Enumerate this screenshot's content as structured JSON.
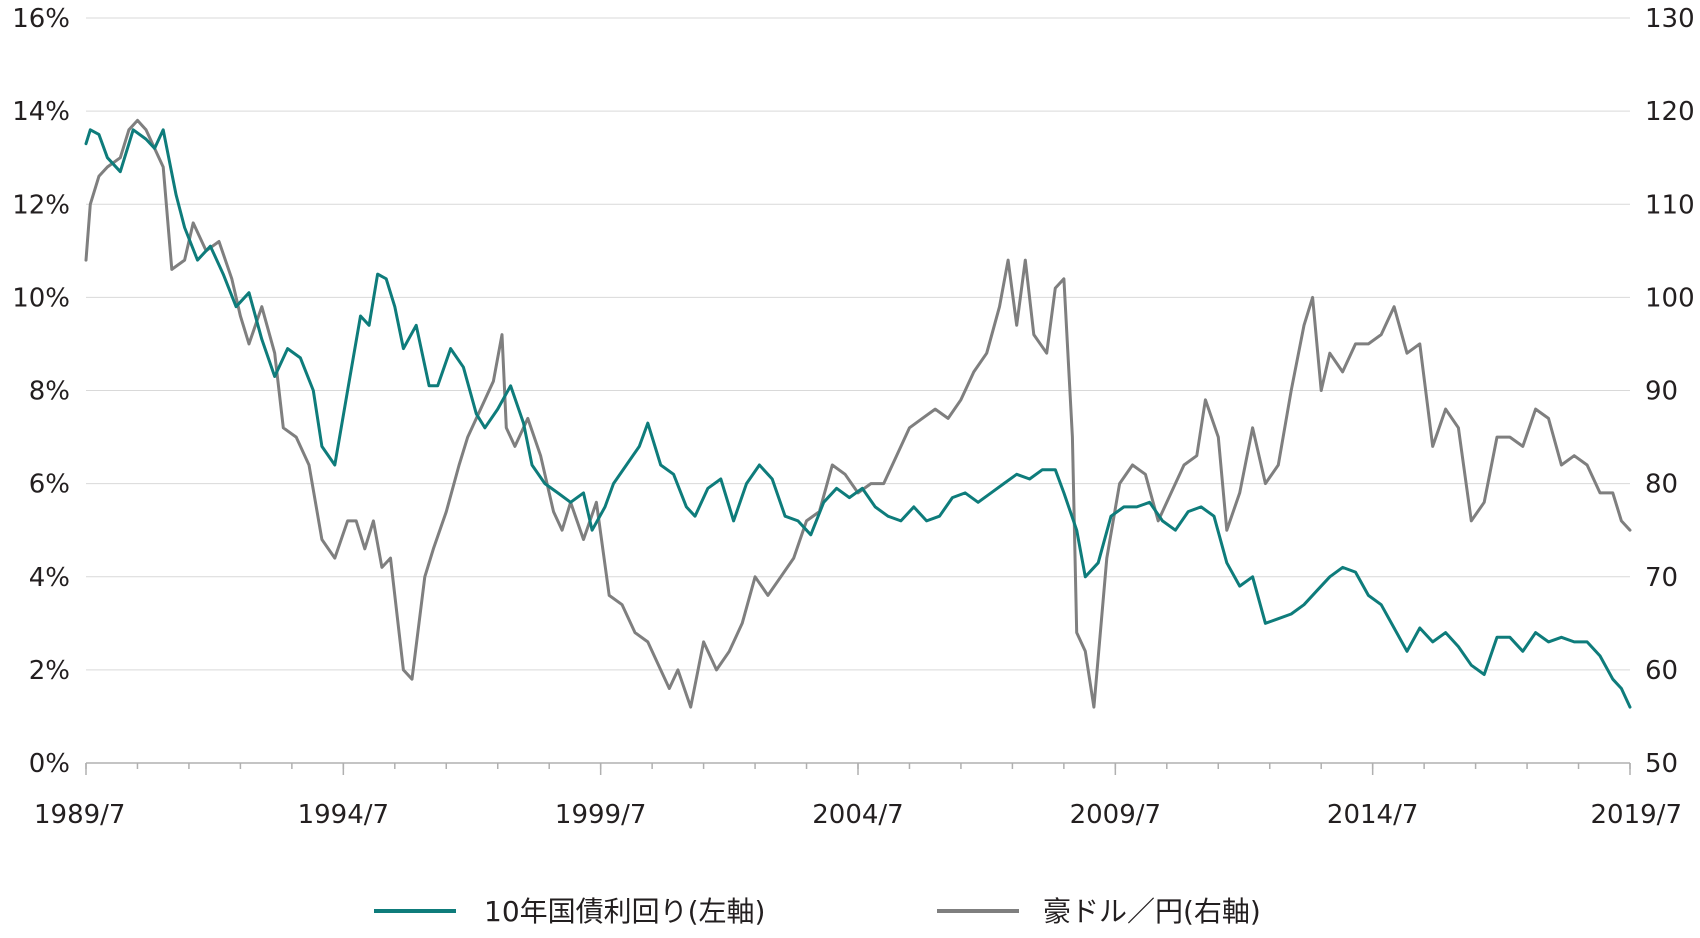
{
  "chart_data": {
    "type": "line",
    "x_range": [
      "1989/7",
      "2019/7"
    ],
    "x_ticks": [
      "1989/7",
      "1994/7",
      "1999/7",
      "2004/7",
      "2009/7",
      "2014/7",
      "2019/7"
    ],
    "y_left": {
      "ylim": [
        0,
        16
      ],
      "ticks": [
        "0%",
        "2%",
        "4%",
        "6%",
        "8%",
        "10%",
        "12%",
        "14%",
        "16%"
      ]
    },
    "y_right": {
      "ylim": [
        50,
        130
      ],
      "ticks": [
        "50",
        "60",
        "70",
        "80",
        "90",
        "100",
        "110",
        "120",
        "130"
      ]
    },
    "grid": true,
    "legend_position": "bottom",
    "series": [
      {
        "name": "10年国債利回り(左軸)",
        "axis": "left",
        "color": "#0e7c7b",
        "points": [
          [
            "1989/7",
            13.3
          ],
          [
            "1989/8",
            13.6
          ],
          [
            "1989/10",
            13.5
          ],
          [
            "1989/12",
            13.0
          ],
          [
            "1990/3",
            12.7
          ],
          [
            "1990/6",
            13.6
          ],
          [
            "1990/9",
            13.4
          ],
          [
            "1990/11",
            13.2
          ],
          [
            "1991/1",
            13.6
          ],
          [
            "1991/4",
            12.2
          ],
          [
            "1991/6",
            11.5
          ],
          [
            "1991/9",
            10.8
          ],
          [
            "1991/12",
            11.1
          ],
          [
            "1992/3",
            10.5
          ],
          [
            "1992/6",
            9.8
          ],
          [
            "1992/9",
            10.1
          ],
          [
            "1992/12",
            9.1
          ],
          [
            "1993/3",
            8.3
          ],
          [
            "1993/6",
            8.9
          ],
          [
            "1993/9",
            8.7
          ],
          [
            "1993/12",
            8.0
          ],
          [
            "1994/2",
            6.8
          ],
          [
            "1994/5",
            6.4
          ],
          [
            "1994/8",
            8.0
          ],
          [
            "1994/11",
            9.6
          ],
          [
            "1995/1",
            9.4
          ],
          [
            "1995/3",
            10.5
          ],
          [
            "1995/5",
            10.4
          ],
          [
            "1995/7",
            9.8
          ],
          [
            "1995/9",
            8.9
          ],
          [
            "1995/12",
            9.4
          ],
          [
            "1996/3",
            8.1
          ],
          [
            "1996/5",
            8.1
          ],
          [
            "1996/8",
            8.9
          ],
          [
            "1996/11",
            8.5
          ],
          [
            "1997/2",
            7.5
          ],
          [
            "1997/4",
            7.2
          ],
          [
            "1997/7",
            7.6
          ],
          [
            "1997/10",
            8.1
          ],
          [
            "1998/1",
            7.3
          ],
          [
            "1998/3",
            6.4
          ],
          [
            "1998/6",
            6.0
          ],
          [
            "1998/9",
            5.8
          ],
          [
            "1998/12",
            5.6
          ],
          [
            "1999/3",
            5.8
          ],
          [
            "1999/5",
            5.0
          ],
          [
            "1999/8",
            5.5
          ],
          [
            "1999/10",
            6.0
          ],
          [
            "2000/1",
            6.4
          ],
          [
            "2000/4",
            6.8
          ],
          [
            "2000/6",
            7.3
          ],
          [
            "2000/9",
            6.4
          ],
          [
            "2000/12",
            6.2
          ],
          [
            "2001/3",
            5.5
          ],
          [
            "2001/5",
            5.3
          ],
          [
            "2001/8",
            5.9
          ],
          [
            "2001/11",
            6.1
          ],
          [
            "2002/2",
            5.2
          ],
          [
            "2002/5",
            6.0
          ],
          [
            "2002/8",
            6.4
          ],
          [
            "2002/11",
            6.1
          ],
          [
            "2003/2",
            5.3
          ],
          [
            "2003/5",
            5.2
          ],
          [
            "2003/8",
            4.9
          ],
          [
            "2003/11",
            5.6
          ],
          [
            "2004/2",
            5.9
          ],
          [
            "2004/5",
            5.7
          ],
          [
            "2004/8",
            5.9
          ],
          [
            "2004/11",
            5.5
          ],
          [
            "2005/2",
            5.3
          ],
          [
            "2005/5",
            5.2
          ],
          [
            "2005/8",
            5.5
          ],
          [
            "2005/11",
            5.2
          ],
          [
            "2006/2",
            5.3
          ],
          [
            "2006/5",
            5.7
          ],
          [
            "2006/8",
            5.8
          ],
          [
            "2006/11",
            5.6
          ],
          [
            "2007/2",
            5.8
          ],
          [
            "2007/5",
            6.0
          ],
          [
            "2007/8",
            6.2
          ],
          [
            "2007/11",
            6.1
          ],
          [
            "2008/2",
            6.3
          ],
          [
            "2008/5",
            6.3
          ],
          [
            "2008/7",
            5.8
          ],
          [
            "2008/10",
            5.0
          ],
          [
            "2008/12",
            4.0
          ],
          [
            "2009/3",
            4.3
          ],
          [
            "2009/6",
            5.3
          ],
          [
            "2009/9",
            5.5
          ],
          [
            "2009/12",
            5.5
          ],
          [
            "2010/3",
            5.6
          ],
          [
            "2010/6",
            5.2
          ],
          [
            "2010/9",
            5.0
          ],
          [
            "2010/12",
            5.4
          ],
          [
            "2011/3",
            5.5
          ],
          [
            "2011/6",
            5.3
          ],
          [
            "2011/9",
            4.3
          ],
          [
            "2011/12",
            3.8
          ],
          [
            "2012/3",
            4.0
          ],
          [
            "2012/6",
            3.0
          ],
          [
            "2012/9",
            3.1
          ],
          [
            "2012/12",
            3.2
          ],
          [
            "2013/3",
            3.4
          ],
          [
            "2013/6",
            3.7
          ],
          [
            "2013/9",
            4.0
          ],
          [
            "2013/12",
            4.2
          ],
          [
            "2014/3",
            4.1
          ],
          [
            "2014/6",
            3.6
          ],
          [
            "2014/9",
            3.4
          ],
          [
            "2014/12",
            2.9
          ],
          [
            "2015/3",
            2.4
          ],
          [
            "2015/6",
            2.9
          ],
          [
            "2015/9",
            2.6
          ],
          [
            "2015/12",
            2.8
          ],
          [
            "2016/3",
            2.5
          ],
          [
            "2016/6",
            2.1
          ],
          [
            "2016/9",
            1.9
          ],
          [
            "2016/12",
            2.7
          ],
          [
            "2017/3",
            2.7
          ],
          [
            "2017/6",
            2.4
          ],
          [
            "2017/9",
            2.8
          ],
          [
            "2017/12",
            2.6
          ],
          [
            "2018/3",
            2.7
          ],
          [
            "2018/6",
            2.6
          ],
          [
            "2018/9",
            2.6
          ],
          [
            "2018/12",
            2.3
          ],
          [
            "2019/3",
            1.8
          ],
          [
            "2019/5",
            1.6
          ],
          [
            "2019/7",
            1.2
          ]
        ]
      },
      {
        "name": "豪ドル／円(右軸)",
        "axis": "right",
        "color": "#7f7f7f",
        "points": [
          [
            "1989/7",
            104
          ],
          [
            "1989/8",
            110
          ],
          [
            "1989/10",
            113
          ],
          [
            "1989/12",
            114
          ],
          [
            "1990/3",
            115
          ],
          [
            "1990/5",
            118
          ],
          [
            "1990/7",
            119
          ],
          [
            "1990/9",
            118
          ],
          [
            "1990/11",
            116
          ],
          [
            "1991/1",
            114
          ],
          [
            "1991/3",
            103
          ],
          [
            "1991/6",
            104
          ],
          [
            "1991/8",
            108
          ],
          [
            "1991/11",
            105
          ],
          [
            "1992/2",
            106
          ],
          [
            "1992/5",
            102
          ],
          [
            "1992/7",
            98
          ],
          [
            "1992/9",
            95
          ],
          [
            "1992/12",
            99
          ],
          [
            "1993/3",
            94
          ],
          [
            "1993/5",
            86
          ],
          [
            "1993/8",
            85
          ],
          [
            "1993/11",
            82
          ],
          [
            "1994/2",
            74
          ],
          [
            "1994/5",
            72
          ],
          [
            "1994/8",
            76
          ],
          [
            "1994/10",
            76
          ],
          [
            "1994/12",
            73
          ],
          [
            "1995/2",
            76
          ],
          [
            "1995/4",
            71
          ],
          [
            "1995/6",
            72
          ],
          [
            "1995/9",
            60
          ],
          [
            "1995/11",
            59
          ],
          [
            "1996/2",
            70
          ],
          [
            "1996/4",
            73
          ],
          [
            "1996/7",
            77
          ],
          [
            "1996/10",
            82
          ],
          [
            "1996/12",
            85
          ],
          [
            "1997/3",
            88
          ],
          [
            "1997/6",
            91
          ],
          [
            "1997/8",
            96
          ],
          [
            "1997/9",
            86
          ],
          [
            "1997/11",
            84
          ],
          [
            "1998/2",
            87
          ],
          [
            "1998/5",
            83
          ],
          [
            "1998/8",
            77
          ],
          [
            "1998/10",
            75
          ],
          [
            "1998/12",
            78
          ],
          [
            "1999/3",
            74
          ],
          [
            "1999/6",
            78
          ],
          [
            "1999/9",
            68
          ],
          [
            "1999/12",
            67
          ],
          [
            "2000/3",
            64
          ],
          [
            "2000/6",
            63
          ],
          [
            "2000/9",
            60
          ],
          [
            "2000/11",
            58
          ],
          [
            "2001/1",
            60
          ],
          [
            "2001/4",
            56
          ],
          [
            "2001/7",
            63
          ],
          [
            "2001/10",
            60
          ],
          [
            "2002/1",
            62
          ],
          [
            "2002/4",
            65
          ],
          [
            "2002/7",
            70
          ],
          [
            "2002/10",
            68
          ],
          [
            "2003/1",
            70
          ],
          [
            "2003/4",
            72
          ],
          [
            "2003/7",
            76
          ],
          [
            "2003/10",
            77
          ],
          [
            "2004/1",
            82
          ],
          [
            "2004/4",
            81
          ],
          [
            "2004/7",
            79
          ],
          [
            "2004/10",
            80
          ],
          [
            "2005/1",
            80
          ],
          [
            "2005/4",
            83
          ],
          [
            "2005/7",
            86
          ],
          [
            "2005/10",
            87
          ],
          [
            "2006/1",
            88
          ],
          [
            "2006/4",
            87
          ],
          [
            "2006/7",
            89
          ],
          [
            "2006/10",
            92
          ],
          [
            "2007/1",
            94
          ],
          [
            "2007/4",
            99
          ],
          [
            "2007/6",
            104
          ],
          [
            "2007/8",
            97
          ],
          [
            "2007/10",
            104
          ],
          [
            "2007/12",
            96
          ],
          [
            "2008/3",
            94
          ],
          [
            "2008/5",
            101
          ],
          [
            "2008/7",
            102
          ],
          [
            "2008/9",
            85
          ],
          [
            "2008/10",
            64
          ],
          [
            "2008/12",
            62
          ],
          [
            "2009/2",
            56
          ],
          [
            "2009/5",
            72
          ],
          [
            "2009/8",
            80
          ],
          [
            "2009/11",
            82
          ],
          [
            "2010/2",
            81
          ],
          [
            "2010/5",
            76
          ],
          [
            "2010/8",
            79
          ],
          [
            "2010/11",
            82
          ],
          [
            "2011/2",
            83
          ],
          [
            "2011/4",
            89
          ],
          [
            "2011/7",
            85
          ],
          [
            "2011/9",
            75
          ],
          [
            "2011/12",
            79
          ],
          [
            "2012/3",
            86
          ],
          [
            "2012/6",
            80
          ],
          [
            "2012/9",
            82
          ],
          [
            "2012/12",
            90
          ],
          [
            "2013/3",
            97
          ],
          [
            "2013/5",
            100
          ],
          [
            "2013/7",
            90
          ],
          [
            "2013/9",
            94
          ],
          [
            "2013/12",
            92
          ],
          [
            "2014/3",
            95
          ],
          [
            "2014/6",
            95
          ],
          [
            "2014/9",
            96
          ],
          [
            "2014/12",
            99
          ],
          [
            "2015/3",
            94
          ],
          [
            "2015/6",
            95
          ],
          [
            "2015/9",
            84
          ],
          [
            "2015/12",
            88
          ],
          [
            "2016/3",
            86
          ],
          [
            "2016/6",
            76
          ],
          [
            "2016/9",
            78
          ],
          [
            "2016/12",
            85
          ],
          [
            "2017/3",
            85
          ],
          [
            "2017/6",
            84
          ],
          [
            "2017/9",
            88
          ],
          [
            "2017/12",
            87
          ],
          [
            "2018/3",
            82
          ],
          [
            "2018/6",
            83
          ],
          [
            "2018/9",
            82
          ],
          [
            "2018/12",
            79
          ],
          [
            "2019/3",
            79
          ],
          [
            "2019/5",
            76
          ],
          [
            "2019/7",
            75
          ]
        ]
      }
    ]
  }
}
